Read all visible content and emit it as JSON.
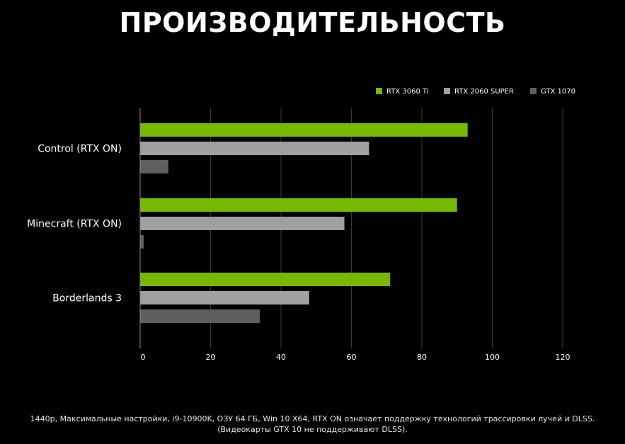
{
  "title": "ПРОИЗВОДИТЕЛЬНОСТЬ",
  "footnote": {
    "line1": "1440p, Максимальные настройки, i9-10900K, ОЗУ 64 ГБ, Win 10 X64, RTX ON означает поддержку технологий трассировки лучей и DLSS.",
    "line2": "(Видеокарты GTX 10 не поддерживают DLSS)."
  },
  "chart_data": {
    "type": "bar",
    "orientation": "horizontal",
    "categories": [
      "Control (RTX ON)",
      "Minecraft (RTX ON)",
      "Borderlands 3"
    ],
    "series": [
      {
        "name": "RTX 3060 Ti",
        "color": "#76b900",
        "values": [
          93,
          90,
          71
        ]
      },
      {
        "name": "RTX 2060 SUPER",
        "color": "#a0a0a0",
        "values": [
          65,
          58,
          48
        ]
      },
      {
        "name": "GTX 1070",
        "color": "#5f5f5f",
        "values": [
          8,
          1,
          34
        ]
      }
    ],
    "xlim": [
      0,
      120
    ],
    "xticks": [
      "0",
      "20",
      "40",
      "60",
      "80",
      "100",
      "120"
    ],
    "xtick_values": [
      0,
      20,
      40,
      60,
      80,
      100,
      120
    ],
    "grid": true,
    "legend": "top-right",
    "gridline_color": "#3a3a3a"
  }
}
